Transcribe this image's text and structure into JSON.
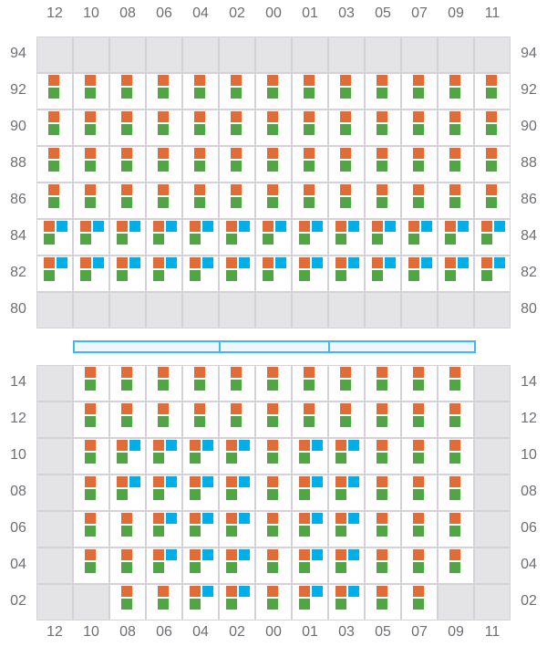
{
  "columns": [
    "12",
    "10",
    "08",
    "06",
    "04",
    "02",
    "00",
    "01",
    "03",
    "05",
    "07",
    "09",
    "11"
  ],
  "legend_colors": {
    "orange": "#e06c37",
    "green": "#52a447",
    "blue": "#00aee8",
    "empty": "#e4e4e6"
  },
  "cell_key": {
    "g": "empty",
    "o": "orange+green",
    "b": "orange+green+blue"
  },
  "top_section": {
    "rows": [
      {
        "label": "94",
        "cells": "ggggggggggggg"
      },
      {
        "label": "92",
        "cells": "ooooooooooooo"
      },
      {
        "label": "90",
        "cells": "ooooooooooooo"
      },
      {
        "label": "88",
        "cells": "ooooooooooooo"
      },
      {
        "label": "86",
        "cells": "ooooooooooooo"
      },
      {
        "label": "84",
        "cells": "bbbbbbbbbbbbb"
      },
      {
        "label": "82",
        "cells": "bbbbbbbbbbbbb"
      },
      {
        "label": "80",
        "cells": "ggggggggggggg"
      }
    ]
  },
  "divider_segments": 3,
  "bottom_section": {
    "rows": [
      {
        "label": "14",
        "cells": "gooooooooooog"
      },
      {
        "label": "12",
        "cells": "gooooooooooog"
      },
      {
        "label": "10",
        "cells": "gobbbbobbooog"
      },
      {
        "label": "08",
        "cells": "gobbbbobbooog"
      },
      {
        "label": "06",
        "cells": "goobbbobbooog"
      },
      {
        "label": "04",
        "cells": "goobbbobbooog"
      },
      {
        "label": "02",
        "cells": "ggoobbobboogg"
      }
    ]
  }
}
